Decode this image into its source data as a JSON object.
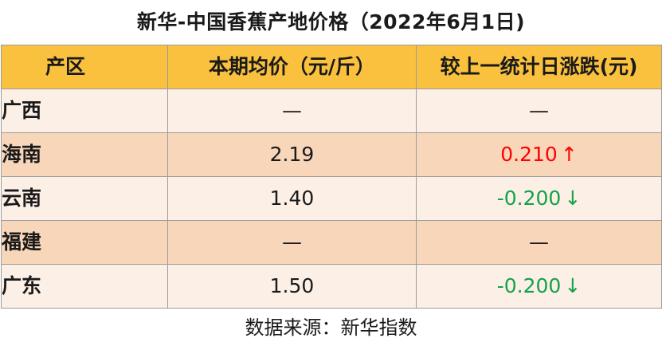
{
  "title": "新华-中国香蕉产地价格（2022年6月1日)",
  "table": {
    "headers": [
      "产区",
      "本期均价（元/斤）",
      "较上一统计日涨跌(元)"
    ],
    "rows": [
      {
        "region": "广西",
        "price": "—",
        "change": "—",
        "direction": "none",
        "arrow": ""
      },
      {
        "region": "海南",
        "price": "2.19",
        "change": "0.210",
        "direction": "up",
        "arrow": "↑"
      },
      {
        "region": "云南",
        "price": "1.40",
        "change": "-0.200",
        "direction": "down",
        "arrow": "↓"
      },
      {
        "region": "福建",
        "price": "—",
        "change": "—",
        "direction": "none",
        "arrow": ""
      },
      {
        "region": "广东",
        "price": "1.50",
        "change": "-0.200",
        "direction": "down",
        "arrow": "↓"
      }
    ]
  },
  "source": "数据来源：新华指数",
  "colors": {
    "header_bg": "#f9c13d",
    "row_light": "#fcefe6",
    "row_dark": "#f7d6b9",
    "up": "#ff0000",
    "down": "#12a24a"
  }
}
